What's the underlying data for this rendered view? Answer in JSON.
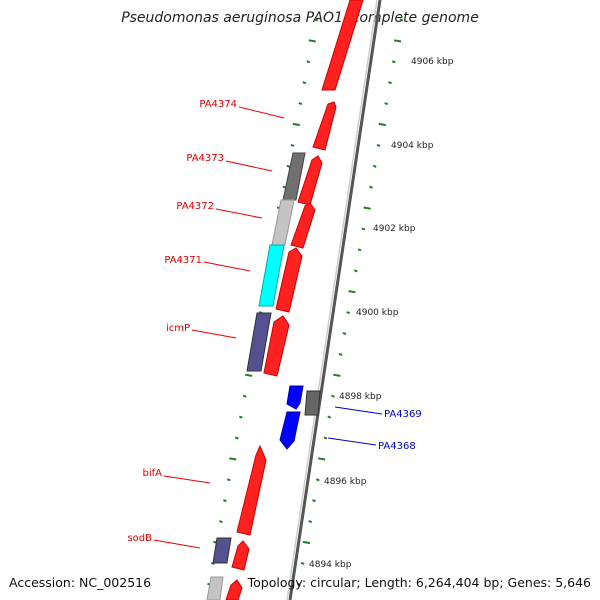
{
  "title": "Pseudomonas aeruginosa PAO1, complete genome",
  "footer": {
    "accession": "Accession: NC_002516",
    "summary": "Topology: circular; Length: 6,264,404 bp; Genes: 5,646"
  },
  "colors": {
    "forward_cds": "#ff0000",
    "reverse_cds": "#0000ff",
    "trna_like": "#808080",
    "light_gray": "#c0c0c0",
    "cyan": "#00ffff",
    "purple": "#55508f",
    "ticks": "#1f7f1f",
    "backbone": "#888888",
    "label_red": "#dd0000",
    "label_blue": "#0000cc"
  },
  "kbp_ticks": [
    "4906 kbp",
    "4904 kbp",
    "4902 kbp",
    "4900 kbp",
    "4898 kbp",
    "4896 kbp",
    "4894 kbp"
  ],
  "gene_labels": [
    {
      "text": "PA4374",
      "strand": "outer"
    },
    {
      "text": "PA4373",
      "strand": "outer"
    },
    {
      "text": "PA4372",
      "strand": "outer"
    },
    {
      "text": "PA4371",
      "strand": "outer"
    },
    {
      "text": "icmP",
      "strand": "outer"
    },
    {
      "text": "PA4369",
      "strand": "inner"
    },
    {
      "text": "PA4368",
      "strand": "inner"
    },
    {
      "text": "bifA",
      "strand": "outer"
    },
    {
      "text": "sodB",
      "strand": "outer"
    }
  ]
}
